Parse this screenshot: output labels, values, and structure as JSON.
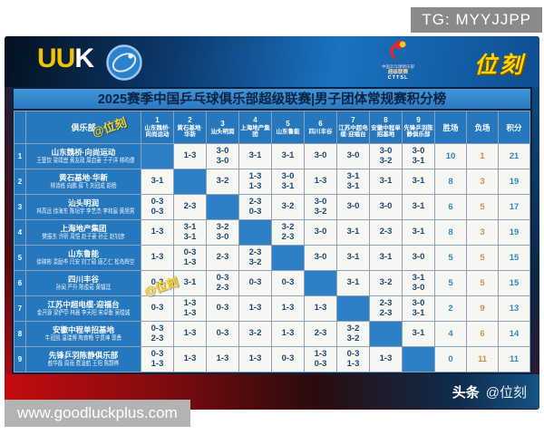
{
  "badges": {
    "tg": "TG: MYYJJPP",
    "url": "www.goodluckplus.com"
  },
  "header": {
    "uuk_left": "UU",
    "uuk_right": "K",
    "cttsl_text1": "中国乒乓球俱乐部",
    "cttsl_text2": "超级联赛",
    "cttsl_text3": "CTTSL",
    "brand": "位刻"
  },
  "title": "2025赛季中国乒乓球俱乐部超级联赛|男子团体常规赛积分榜",
  "watermarks": [
    "@位刻",
    "@位刻"
  ],
  "footer": {
    "label": "头条",
    "handle": "@位刻"
  },
  "colors": {
    "wins": "#2e8bc0",
    "losses": "#d2913e",
    "points": "#2e8bc0",
    "accent_yellow": "#ffd21e",
    "table_blue": "#2577be"
  },
  "table": {
    "corner_header": "俱乐部",
    "opponents": [
      {
        "num": "1",
        "name": "山东魏桥·向尚运动"
      },
      {
        "num": "2",
        "name": "黄石基地·华新"
      },
      {
        "num": "3",
        "name": "汕头明润"
      },
      {
        "num": "4",
        "name": "上海地产集团"
      },
      {
        "num": "5",
        "name": "山东鲁能"
      },
      {
        "num": "6",
        "name": "四川丰谷"
      },
      {
        "num": "7",
        "name": "江苏中超电缆·迎福台"
      },
      {
        "num": "8",
        "name": "安徽中程单招基地"
      },
      {
        "num": "9",
        "name": "先锋乒羽陈静俱乐部"
      }
    ],
    "stat_headers": [
      "胜场",
      "负场",
      "积分"
    ],
    "rows": [
      {
        "rank": "1",
        "team": "山东魏桥·向尚运动",
        "players": "王楚钦 梁靖崑 黄友政 周启豪 于子洋 林昀儒",
        "scores": [
          [],
          [
            "1-3"
          ],
          [
            "3-0",
            "3-0"
          ],
          [
            "3-1"
          ],
          [
            "3-1"
          ],
          [
            "3-0"
          ],
          [
            "3-0"
          ],
          [
            "3-0",
            "3-2"
          ],
          [
            "3-0",
            "3-1"
          ]
        ],
        "wins": "10",
        "losses": "1",
        "points": "21"
      },
      {
        "rank": "2",
        "team": "黄石基地·华新",
        "players": "林诗栋 向鹏 薛飞 刘冠成 胡杨",
        "scores": [
          [
            "3-1"
          ],
          [],
          [
            "3-2"
          ],
          [
            "1-3",
            "1-3"
          ],
          [
            "3-0",
            "3-1"
          ],
          [
            "1-3"
          ],
          [
            "3-1",
            "3-1"
          ],
          [
            "3-1"
          ],
          [
            "3-1"
          ]
        ],
        "wins": "8",
        "losses": "3",
        "points": "19"
      },
      {
        "rank": "3",
        "team": "汕头明润",
        "players": "林高远 徐海东 陈垣宇 李艺杰 李和宸 黄旭男",
        "scores": [
          [
            "0-3",
            "0-3"
          ],
          [
            "2-3"
          ],
          [],
          [
            "2-3",
            "0-3"
          ],
          [
            "3-2"
          ],
          [
            "3-0",
            "3-2"
          ],
          [
            "3-0"
          ],
          [
            "3-0"
          ],
          [
            "3-1"
          ]
        ],
        "wins": "6",
        "losses": "5",
        "points": "17"
      },
      {
        "rank": "4",
        "team": "上海地产集团",
        "players": "樊振东 许昕 周恺 赵子豪 孙正 赵钊彦",
        "scores": [
          [
            "1-3"
          ],
          [
            "3-1",
            "3-1"
          ],
          [
            "3-2",
            "3-0"
          ],
          [],
          [
            "3-2",
            "2-3"
          ],
          [
            "3-0"
          ],
          [
            "3-1"
          ],
          [
            "2-3"
          ],
          [
            "3-1"
          ]
        ],
        "wins": "8",
        "losses": "3",
        "points": "19"
      },
      {
        "rank": "5",
        "team": "山东鲁能",
        "players": "徐瑛彬 袁励岑 闫安 刘丁硕 唐乙仁 松岛辉空",
        "scores": [
          [
            "1-3"
          ],
          [
            "0-3",
            "1-3"
          ],
          [
            "2-3"
          ],
          [
            "2-3",
            "3-2"
          ],
          [],
          [
            "3-0"
          ],
          [
            "3-1"
          ],
          [
            "3-1"
          ],
          [
            "3-0"
          ]
        ],
        "wins": "5",
        "losses": "5",
        "points": "15"
      },
      {
        "rank": "6",
        "team": "四川丰谷",
        "players": "孙闻 严升 陈俊菘 黄镇廷",
        "scores": [
          [
            "0-3"
          ],
          [
            "3-1"
          ],
          [
            "0-3",
            "2-3"
          ],
          [
            "0-3"
          ],
          [
            "0-3"
          ],
          [],
          [
            "3-1"
          ],
          [
            "3-2"
          ],
          [
            "3-1",
            "3-0"
          ]
        ],
        "wins": "5",
        "losses": "5",
        "points": "15"
      },
      {
        "rank": "7",
        "team": "江苏中超电缆·迎福台",
        "players": "金开源 梁俨苧 林晨 李天阳 宋卓衡 吴晙诚",
        "scores": [
          [
            "0-3"
          ],
          [
            "1-3",
            "1-3"
          ],
          [
            "0-3"
          ],
          [
            "1-3"
          ],
          [
            "1-3"
          ],
          [
            "1-3"
          ],
          [],
          [
            "2-3",
            "2-3"
          ],
          [
            "3-0",
            "3-1"
          ]
        ],
        "wins": "2",
        "losses": "9",
        "points": "13"
      },
      {
        "rank": "8",
        "team": "安徽中程单招基地",
        "players": "牛冠凯 温瑞博 陶育畅 宁贯坤 郭勇",
        "scores": [
          [
            "0-3",
            "2-3"
          ],
          [
            "1-3"
          ],
          [
            "0-3"
          ],
          [
            "3-2"
          ],
          [
            "1-3"
          ],
          [
            "2-3"
          ],
          [
            "3-2",
            "3-2"
          ],
          [],
          [
            "3-1"
          ]
        ],
        "wins": "4",
        "losses": "6",
        "points": "14"
      },
      {
        "rank": "9",
        "team": "先锋乒羽陈静俱乐部",
        "players": "敖华磊 周雨 费凌航 王阳 陈颢桦",
        "scores": [
          [
            "0-3",
            "1-3"
          ],
          [
            "1-3"
          ],
          [
            "1-3"
          ],
          [
            "1-3"
          ],
          [
            "0-3"
          ],
          [
            "1-3",
            "0-3"
          ],
          [
            "0-3",
            "1-3"
          ],
          [
            "1-3"
          ],
          []
        ],
        "wins": "0",
        "losses": "11",
        "points": "11"
      }
    ]
  },
  "chart_data": {
    "type": "table",
    "title": "2025赛季中国乒乓球俱乐部超级联赛|男子团体常规赛积分榜",
    "columns": [
      "俱乐部",
      "1 山东魏桥·向尚运动",
      "2 黄石基地·华新",
      "3 汕头明润",
      "4 上海地产集团",
      "5 山东鲁能",
      "6 四川丰谷",
      "7 江苏中超电缆·迎福台",
      "8 安徽中程单招基地",
      "9 先锋乒羽陈静俱乐部",
      "胜场",
      "负场",
      "积分"
    ],
    "rows": [
      [
        "山东魏桥·向尚运动",
        "—",
        "1-3",
        "3-0/3-0",
        "3-1",
        "3-1",
        "3-0",
        "3-0",
        "3-0/3-2",
        "3-0/3-1",
        "10",
        "1",
        "21"
      ],
      [
        "黄石基地·华新",
        "3-1",
        "—",
        "3-2",
        "1-3/1-3",
        "3-0/3-1",
        "1-3",
        "3-1/3-1",
        "3-1",
        "3-1",
        "8",
        "3",
        "19"
      ],
      [
        "汕头明润",
        "0-3/0-3",
        "2-3",
        "—",
        "2-3/0-3",
        "3-2",
        "3-0/3-2",
        "3-0",
        "3-0",
        "3-1",
        "6",
        "5",
        "17"
      ],
      [
        "上海地产集团",
        "1-3",
        "3-1/3-1",
        "3-2/3-0",
        "—",
        "3-2/2-3",
        "3-0",
        "3-1",
        "2-3",
        "3-1",
        "8",
        "3",
        "19"
      ],
      [
        "山东鲁能",
        "1-3",
        "0-3/1-3",
        "2-3",
        "2-3/3-2",
        "—",
        "3-0",
        "3-1",
        "3-1",
        "3-0",
        "5",
        "5",
        "15"
      ],
      [
        "四川丰谷",
        "0-3",
        "3-1",
        "0-3/2-3",
        "0-3",
        "0-3",
        "—",
        "3-1",
        "3-2",
        "3-1/3-0",
        "5",
        "5",
        "15"
      ],
      [
        "江苏中超电缆·迎福台",
        "0-3",
        "1-3/1-3",
        "0-3",
        "1-3",
        "1-3",
        "1-3",
        "—",
        "2-3/2-3",
        "3-0/3-1",
        "2",
        "9",
        "13"
      ],
      [
        "安徽中程单招基地",
        "0-3/2-3",
        "1-3",
        "0-3",
        "3-2",
        "1-3",
        "2-3",
        "3-2/3-2",
        "—",
        "3-1",
        "4",
        "6",
        "14"
      ],
      [
        "先锋乒羽陈静俱乐部",
        "0-3/1-3",
        "1-3",
        "1-3",
        "1-3",
        "0-3",
        "1-3/0-3",
        "0-3/1-3",
        "1-3",
        "—",
        "0",
        "11",
        "11"
      ]
    ]
  }
}
